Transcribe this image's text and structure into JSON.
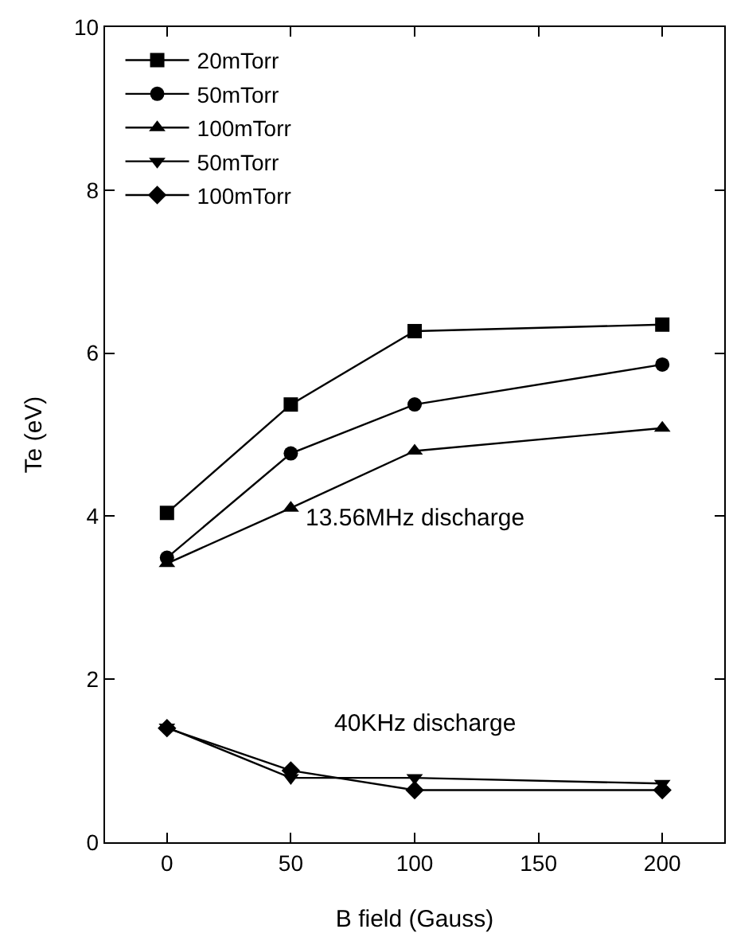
{
  "chart_data": {
    "type": "line",
    "xlabel": "B field (Gauss)",
    "ylabel": "Te (eV)",
    "x": [
      0,
      50,
      100,
      200
    ],
    "series": [
      {
        "name": "20mTorr",
        "color": "#000000",
        "marker": "square",
        "values": [
          4.04,
          5.37,
          6.27,
          6.35
        ]
      },
      {
        "name": "50mTorr",
        "color": "#000000",
        "marker": "circle",
        "values": [
          3.49,
          4.77,
          5.37,
          5.86
        ]
      },
      {
        "name": "100mTorr",
        "color": "#000000",
        "marker": "triangle",
        "values": [
          3.42,
          4.1,
          4.8,
          5.08
        ]
      },
      {
        "name": "50mTorr",
        "color": "#000000",
        "marker": "triangle-down",
        "values": [
          1.41,
          0.79,
          0.79,
          0.72
        ]
      },
      {
        "name": "100mTorr",
        "color": "#000000",
        "marker": "diamond",
        "values": [
          1.4,
          0.88,
          0.64,
          0.64
        ]
      }
    ],
    "xlim": [
      -25,
      225
    ],
    "xticks": [
      0,
      50,
      100,
      150,
      200
    ],
    "ylim": [
      0,
      10
    ],
    "yticks": [
      0,
      2,
      4,
      6,
      8,
      10
    ],
    "grid": false,
    "legend": "top left",
    "annotations": [
      "13.56MHz discharge",
      "40KHz discharge"
    ]
  }
}
